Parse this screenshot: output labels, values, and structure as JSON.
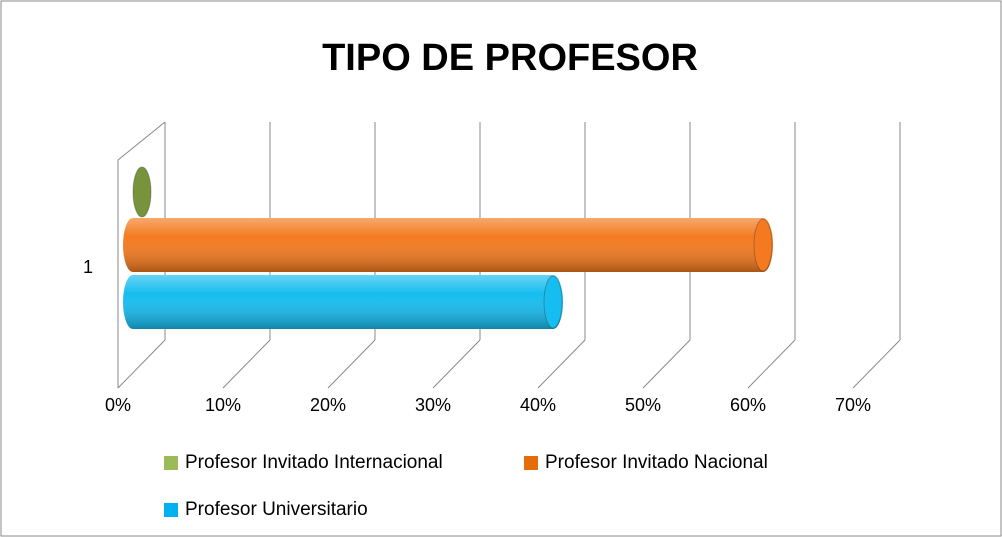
{
  "chart_data": {
    "type": "bar3d",
    "orientation": "horizontal",
    "title": "TIPO DE PROFESOR",
    "categories": [
      "1"
    ],
    "series": [
      {
        "name": "Profesor Invitado Internacional",
        "color": "#77933c",
        "legend_color": "#9bbb59",
        "values": [
          0
        ]
      },
      {
        "name": "Profesor Invitado Nacional",
        "color": "#f47a1f",
        "legend_color": "#e46c0a",
        "values": [
          60
        ]
      },
      {
        "name": "Profesor Universitario",
        "color": "#16bdf0",
        "legend_color": "#00b0f0",
        "values": [
          40
        ]
      }
    ],
    "xlim": [
      0,
      70
    ],
    "xticks": [
      {
        "value": 0,
        "label": "0%"
      },
      {
        "value": 10,
        "label": "10%"
      },
      {
        "value": 20,
        "label": "20%"
      },
      {
        "value": 30,
        "label": "30%"
      },
      {
        "value": 40,
        "label": "40%"
      },
      {
        "value": 50,
        "label": "50%"
      },
      {
        "value": 60,
        "label": "60%"
      },
      {
        "value": 70,
        "label": "70%"
      }
    ],
    "grid": true
  }
}
